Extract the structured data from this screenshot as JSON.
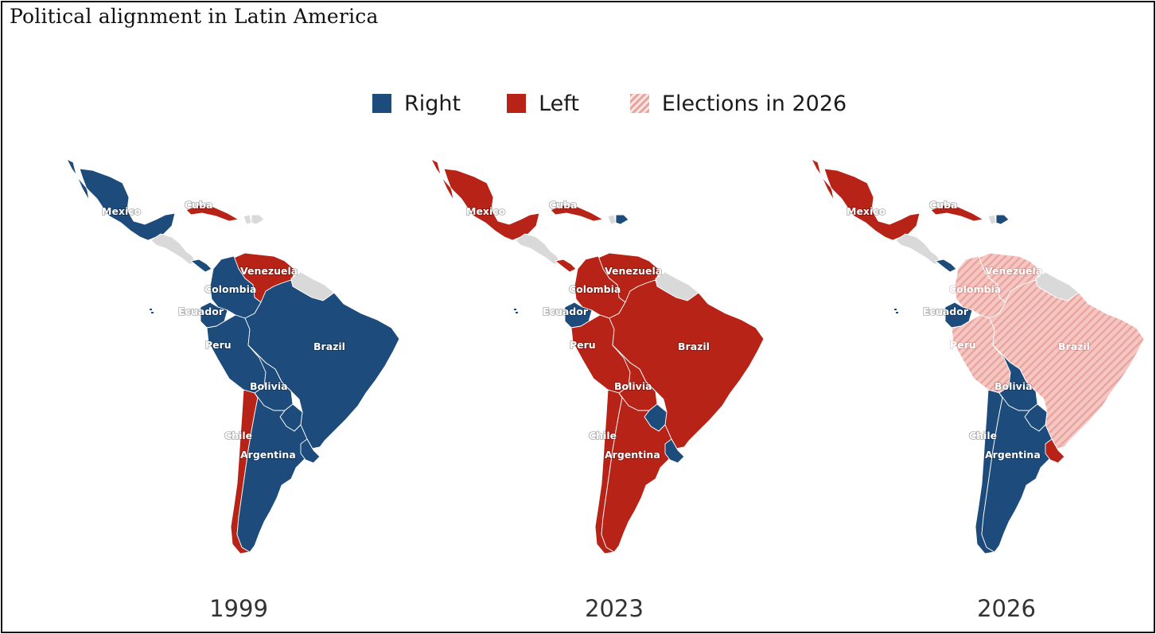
{
  "title": "Political alignment in Latin America",
  "colors": {
    "right": "#1c4b7c",
    "left": "#b82318",
    "elections_light": "#f6c7c2",
    "elections_stripe": "#e9a59f",
    "nonaligned": "#d9d9d9",
    "border": "#ffffff"
  },
  "legend": [
    {
      "label": "Right",
      "key": "right"
    },
    {
      "label": "Left",
      "key": "left"
    },
    {
      "label": "Elections in 2026",
      "key": "elections"
    }
  ],
  "panels": [
    {
      "year": "1999",
      "countries": {
        "mexico": "right",
        "central_america": "nonaligned",
        "panama": "right",
        "cuba": "left",
        "hispaniola_west": "nonaligned",
        "hispaniola_east": "nonaligned",
        "venezuela": "left",
        "colombia": "right",
        "guianas": "nonaligned",
        "ecuador": "right",
        "peru": "right",
        "brazil": "right",
        "bolivia": "right",
        "paraguay": "right",
        "chile": "left",
        "argentina": "right",
        "uruguay": "right"
      },
      "labels": {
        "mexico": "Mexico",
        "cuba": "Cuba",
        "venezuela": "Venezuela",
        "colombia": "Colombia",
        "ecuador": "Ecuador",
        "peru": "Peru",
        "brazil": "Brazil",
        "bolivia": "Bolivia",
        "chile": "Chile",
        "argentina": "Argentina"
      }
    },
    {
      "year": "2023",
      "countries": {
        "mexico": "left",
        "central_america": "nonaligned",
        "panama": "left",
        "cuba": "left",
        "hispaniola_west": "nonaligned",
        "hispaniola_east": "right",
        "venezuela": "left",
        "colombia": "left",
        "guianas": "nonaligned",
        "ecuador": "right",
        "peru": "left",
        "brazil": "left",
        "bolivia": "left",
        "paraguay": "right",
        "chile": "left",
        "argentina": "left",
        "uruguay": "right"
      },
      "labels": {
        "mexico": "Mexico",
        "cuba": "Cuba",
        "venezuela": "Venezuela",
        "colombia": "Colombia",
        "ecuador": "Ecuador",
        "peru": "Peru",
        "brazil": "Brazil",
        "bolivia": "Bolivia",
        "chile": "Chile",
        "argentina": "Argentina"
      }
    },
    {
      "year": "2026",
      "countries": {
        "mexico": "left",
        "central_america": "nonaligned",
        "panama": "right",
        "cuba": "left",
        "hispaniola_west": "nonaligned",
        "hispaniola_east": "right",
        "venezuela": "elections",
        "colombia": "elections",
        "guianas": "nonaligned",
        "ecuador": "right",
        "peru": "elections",
        "brazil": "elections",
        "bolivia": "right",
        "paraguay": "right",
        "chile": "right",
        "argentina": "right",
        "uruguay": "left"
      },
      "labels": {
        "mexico": "Mexico",
        "cuba": "Cuba",
        "venezuela": "Venezuela",
        "colombia": "Colombia",
        "ecuador": "Ecuador",
        "peru": "Peru",
        "brazil": "Brazil",
        "bolivia": "Bolivia",
        "chile": "Chile",
        "argentina": "Argentina"
      }
    }
  ]
}
